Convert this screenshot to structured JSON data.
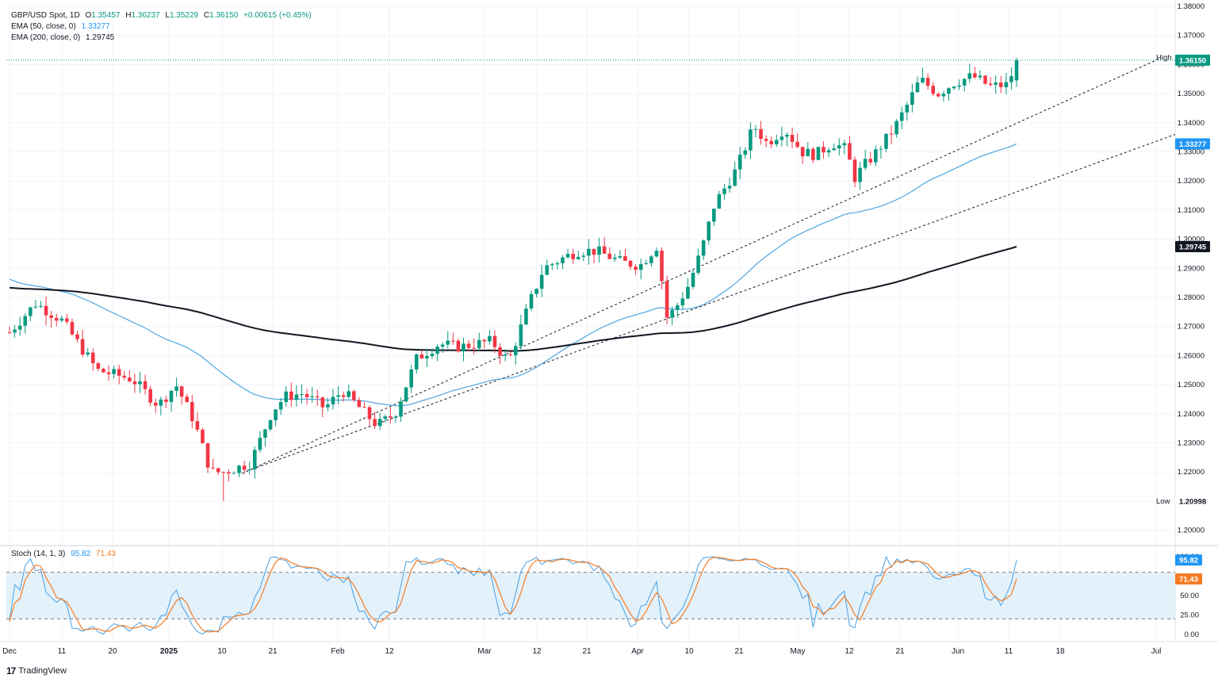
{
  "instrument": {
    "title": "GBP/USD Spot, 1D",
    "open_label": "O",
    "open": "1.35457",
    "high_label": "H",
    "high": "1.36237",
    "low_label": "L",
    "low": "1.35229",
    "close_label": "C",
    "close": "1.36150",
    "change": "+0.00615 (+0.45%)"
  },
  "indicators": {
    "ema50_label": "EMA (50, close, 0)",
    "ema50_value": "1.33277",
    "ema200_label": "EMA (200, close, 0)",
    "ema200_value": "1.29745",
    "stoch_label": "Stoch (14, 1, 3)",
    "stoch_k_value": "95.82",
    "stoch_d_value": "71.43"
  },
  "markers": {
    "high_label": "High",
    "high_value": "1.36237",
    "low_label": "Low",
    "low_value": "1.20998",
    "last_price": "1.36150"
  },
  "branding": {
    "logo_text": "TradingView"
  },
  "colors": {
    "up": "#089981",
    "down": "#f23645",
    "ema50": "#4da6e0",
    "ema200": "#131722",
    "stoch_k": "#4a9fe0",
    "stoch_d": "#f57c24",
    "band": "#e3f1fb",
    "last_label": "#089981"
  },
  "chart_data": {
    "type": "candlestick",
    "price_axis": {
      "min": 1.195,
      "max": 1.38,
      "ticks": [
        "1.20000",
        "1.21000",
        "1.22000",
        "1.23000",
        "1.24000",
        "1.25000",
        "1.26000",
        "1.27000",
        "1.28000",
        "1.29000",
        "1.30000",
        "1.31000",
        "1.32000",
        "1.33000",
        "1.34000",
        "1.35000",
        "1.36000",
        "1.37000",
        "1.38000"
      ]
    },
    "x_labels": [
      "Dec",
      "11",
      "20",
      "2025",
      "10",
      "21",
      "Feb",
      "12",
      "Mar",
      "12",
      "21",
      "Apr",
      "10",
      "21",
      "May",
      "12",
      "21",
      "Jun",
      "11",
      "18",
      "Jul"
    ],
    "stoch_axis": {
      "ticks": [
        "0.00",
        "25.00",
        "50.00",
        "75.00",
        "100.00"
      ],
      "band": [
        20,
        80
      ]
    },
    "ema50_end": 1.33277,
    "ema200_end": 1.29745,
    "stoch_k_last": 95.82,
    "stoch_d_last": 71.43
  }
}
